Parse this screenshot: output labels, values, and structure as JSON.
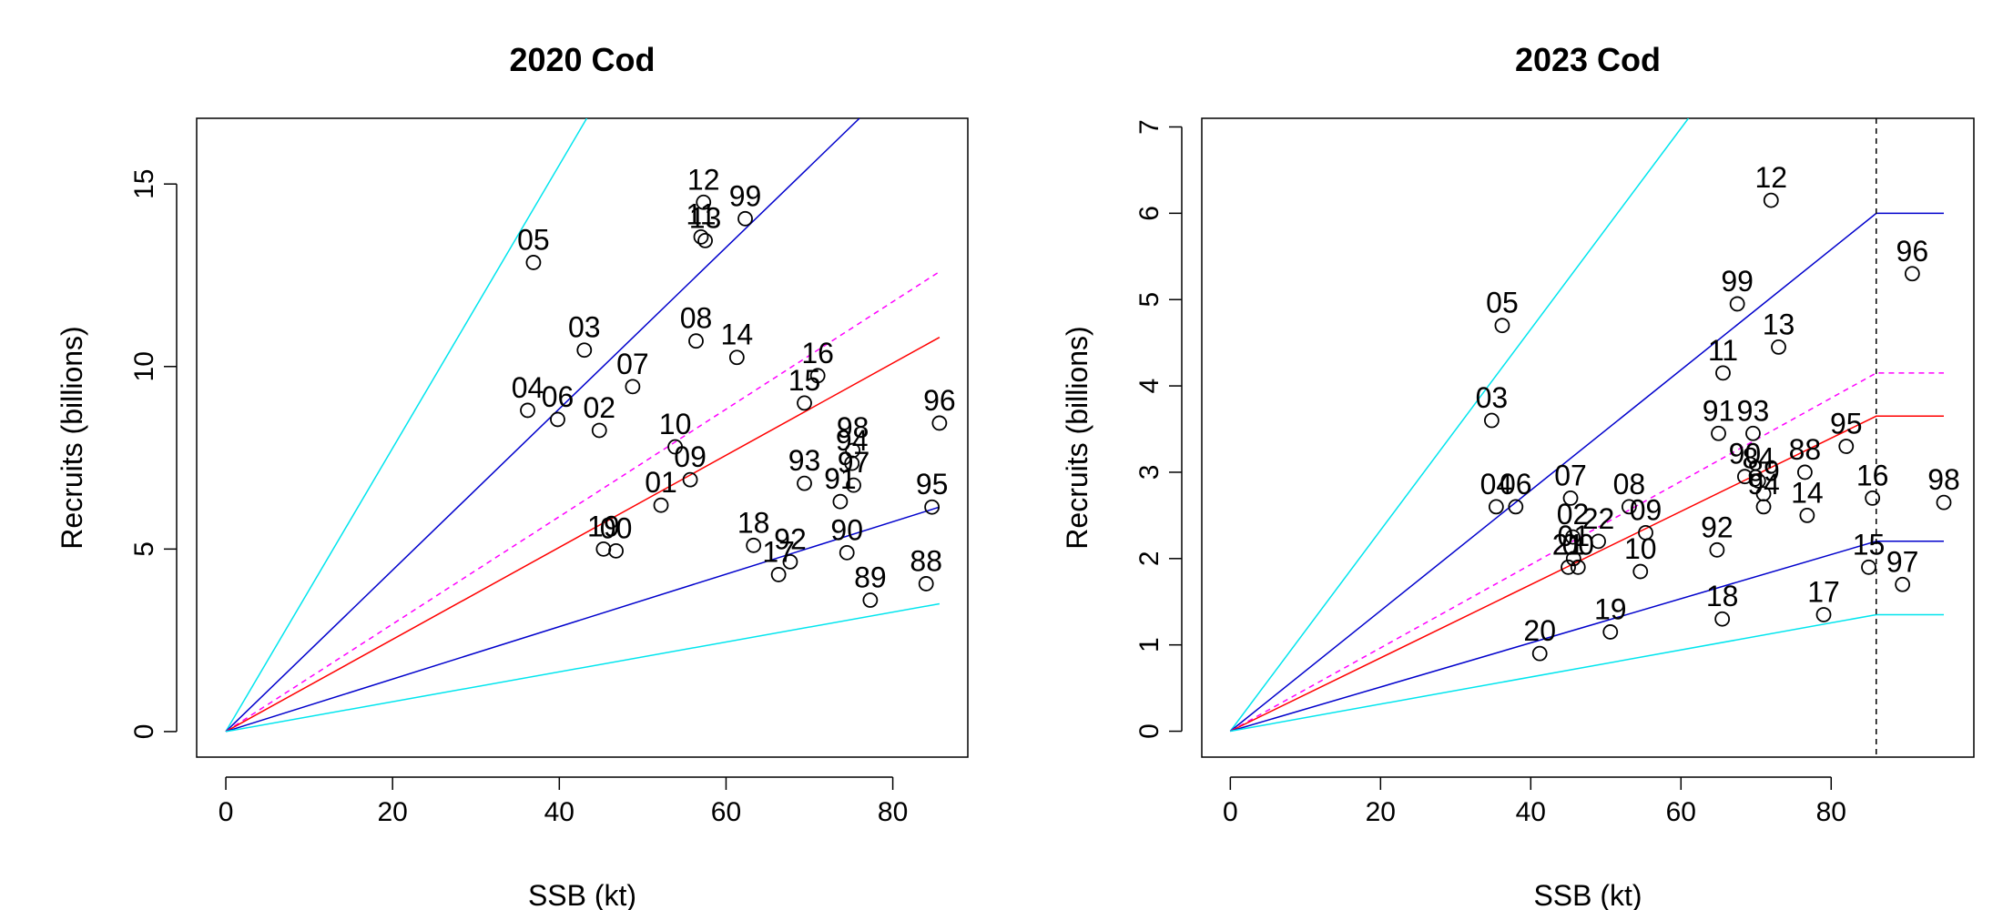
{
  "chart_data": [
    {
      "type": "scatter",
      "title": "2020 Cod",
      "xlabel": "SSB (kt)",
      "ylabel": "Recruits (billions)",
      "xlim": [
        -3.5,
        89
      ],
      "ylim": [
        -0.7,
        16.8
      ],
      "x_ticks": [
        0,
        20,
        40,
        60,
        80
      ],
      "y_ticks": [
        0,
        5,
        10,
        15
      ],
      "points": [
        {
          "label": "05",
          "x": 36.9,
          "y": 12.85
        },
        {
          "label": "12",
          "x": 57.3,
          "y": 14.5
        },
        {
          "label": "99",
          "x": 62.3,
          "y": 14.05
        },
        {
          "label": "11",
          "x": 57.0,
          "y": 13.55
        },
        {
          "label": "13",
          "x": 57.5,
          "y": 13.45
        },
        {
          "label": "03",
          "x": 43.0,
          "y": 10.45
        },
        {
          "label": "08",
          "x": 56.4,
          "y": 10.7
        },
        {
          "label": "14",
          "x": 61.3,
          "y": 10.25
        },
        {
          "label": "07",
          "x": 48.8,
          "y": 9.45
        },
        {
          "label": "16",
          "x": 71.0,
          "y": 9.75
        },
        {
          "label": "04",
          "x": 36.2,
          "y": 8.8
        },
        {
          "label": "06",
          "x": 39.8,
          "y": 8.55
        },
        {
          "label": "02",
          "x": 44.8,
          "y": 8.25
        },
        {
          "label": "15",
          "x": 69.4,
          "y": 9.0
        },
        {
          "label": "96",
          "x": 85.6,
          "y": 8.45
        },
        {
          "label": "10",
          "x": 53.9,
          "y": 7.8
        },
        {
          "label": "09",
          "x": 55.7,
          "y": 6.9
        },
        {
          "label": "01",
          "x": 52.2,
          "y": 6.2
        },
        {
          "label": "98",
          "x": 75.2,
          "y": 7.7
        },
        {
          "label": "93",
          "x": 69.4,
          "y": 6.8
        },
        {
          "label": "94",
          "x": 75.1,
          "y": 7.35
        },
        {
          "label": "97",
          "x": 75.3,
          "y": 6.75
        },
        {
          "label": "91",
          "x": 73.7,
          "y": 6.3
        },
        {
          "label": "95",
          "x": 84.7,
          "y": 6.15
        },
        {
          "label": "19",
          "x": 45.3,
          "y": 5.0
        },
        {
          "label": "00",
          "x": 46.8,
          "y": 4.95
        },
        {
          "label": "18",
          "x": 63.3,
          "y": 5.1
        },
        {
          "label": "92",
          "x": 67.7,
          "y": 4.65
        },
        {
          "label": "17",
          "x": 66.3,
          "y": 4.3
        },
        {
          "label": "90",
          "x": 74.5,
          "y": 4.9
        },
        {
          "label": "89",
          "x": 77.3,
          "y": 3.6
        },
        {
          "label": "88",
          "x": 84.0,
          "y": 4.05
        }
      ],
      "lines": [
        {
          "color": "#00e5ee",
          "style": "solid",
          "points": [
            [
              0,
              0
            ],
            [
              43.3,
              16.8
            ]
          ]
        },
        {
          "color": "#0000cc",
          "style": "solid",
          "points": [
            [
              0,
              0
            ],
            [
              76.0,
              16.8
            ]
          ]
        },
        {
          "color": "#ff00ff",
          "style": "dashed",
          "points": [
            [
              0,
              0
            ],
            [
              85.6,
              12.6
            ]
          ]
        },
        {
          "color": "#ff0000",
          "style": "solid",
          "points": [
            [
              0,
              0
            ],
            [
              85.6,
              10.8
            ]
          ]
        },
        {
          "color": "#0000cc",
          "style": "solid",
          "points": [
            [
              0,
              0
            ],
            [
              85.6,
              6.15
            ]
          ]
        },
        {
          "color": "#00e5ee",
          "style": "solid",
          "points": [
            [
              0,
              0
            ],
            [
              85.6,
              3.5
            ]
          ]
        }
      ]
    },
    {
      "type": "scatter",
      "title": "2023 Cod",
      "xlabel": "SSB (kt)",
      "ylabel": "Recruits (billions)",
      "xlim": [
        -3.8,
        99
      ],
      "ylim": [
        -0.3,
        7.1
      ],
      "x_ticks": [
        0,
        20,
        40,
        60,
        80
      ],
      "y_ticks": [
        0,
        1,
        2,
        3,
        4,
        5,
        6,
        7
      ],
      "vline": {
        "x": 86,
        "color": "#000000",
        "style": "dashed"
      },
      "points": [
        {
          "label": "12",
          "x": 72.0,
          "y": 6.15
        },
        {
          "label": "05",
          "x": 36.2,
          "y": 4.7
        },
        {
          "label": "99",
          "x": 67.5,
          "y": 4.95
        },
        {
          "label": "96",
          "x": 90.8,
          "y": 5.3
        },
        {
          "label": "13",
          "x": 73.0,
          "y": 4.45
        },
        {
          "label": "11",
          "x": 65.6,
          "y": 4.15
        },
        {
          "label": "03",
          "x": 34.8,
          "y": 3.6
        },
        {
          "label": "91",
          "x": 65.0,
          "y": 3.45
        },
        {
          "label": "93",
          "x": 69.6,
          "y": 3.45
        },
        {
          "label": "95",
          "x": 82.0,
          "y": 3.3
        },
        {
          "label": "88",
          "x": 76.5,
          "y": 3.0
        },
        {
          "label": "90",
          "x": 68.5,
          "y": 2.95
        },
        {
          "label": "84",
          "x": 70.3,
          "y": 2.9
        },
        {
          "label": "89",
          "x": 71.0,
          "y": 2.75
        },
        {
          "label": "07",
          "x": 45.3,
          "y": 2.7
        },
        {
          "label": "16",
          "x": 85.5,
          "y": 2.7
        },
        {
          "label": "98",
          "x": 95.0,
          "y": 2.65
        },
        {
          "label": "04",
          "x": 35.4,
          "y": 2.6
        },
        {
          "label": "06",
          "x": 38.0,
          "y": 2.6
        },
        {
          "label": "08",
          "x": 53.1,
          "y": 2.6
        },
        {
          "label": "94",
          "x": 71.0,
          "y": 2.6
        },
        {
          "label": "14",
          "x": 76.8,
          "y": 2.5
        },
        {
          "label": "09",
          "x": 55.3,
          "y": 2.3
        },
        {
          "label": "02",
          "x": 45.6,
          "y": 2.25
        },
        {
          "label": "22",
          "x": 49.0,
          "y": 2.2
        },
        {
          "label": "15",
          "x": 85.0,
          "y": 1.9
        },
        {
          "label": "92",
          "x": 64.8,
          "y": 2.1
        },
        {
          "label": "01",
          "x": 45.7,
          "y": 2.0
        },
        {
          "label": "21",
          "x": 45.0,
          "y": 1.9
        },
        {
          "label": "00",
          "x": 46.3,
          "y": 1.9
        },
        {
          "label": "10",
          "x": 54.6,
          "y": 1.85
        },
        {
          "label": "97",
          "x": 89.5,
          "y": 1.7
        },
        {
          "label": "19",
          "x": 50.6,
          "y": 1.15
        },
        {
          "label": "18",
          "x": 65.5,
          "y": 1.3
        },
        {
          "label": "17",
          "x": 79.0,
          "y": 1.35
        },
        {
          "label": "20",
          "x": 41.2,
          "y": 0.9
        }
      ],
      "lines": [
        {
          "color": "#00e5ee",
          "style": "solid",
          "points": [
            [
              0,
              0
            ],
            [
              61.0,
              7.1
            ]
          ]
        },
        {
          "color": "#0000cc",
          "style": "solid",
          "points": [
            [
              0,
              0
            ],
            [
              86,
              6.0
            ],
            [
              95,
              6.0
            ]
          ]
        },
        {
          "color": "#ff00ff",
          "style": "dashed",
          "points": [
            [
              0,
              0
            ],
            [
              86,
              4.15
            ],
            [
              95,
              4.15
            ]
          ]
        },
        {
          "color": "#ff0000",
          "style": "solid",
          "points": [
            [
              0,
              0
            ],
            [
              86,
              3.65
            ],
            [
              95,
              3.65
            ]
          ]
        },
        {
          "color": "#0000cc",
          "style": "solid",
          "points": [
            [
              0,
              0
            ],
            [
              86,
              2.2
            ],
            [
              95,
              2.2
            ]
          ]
        },
        {
          "color": "#00e5ee",
          "style": "solid",
          "points": [
            [
              0,
              0
            ],
            [
              86,
              1.35
            ],
            [
              95,
              1.35
            ]
          ]
        }
      ]
    }
  ]
}
